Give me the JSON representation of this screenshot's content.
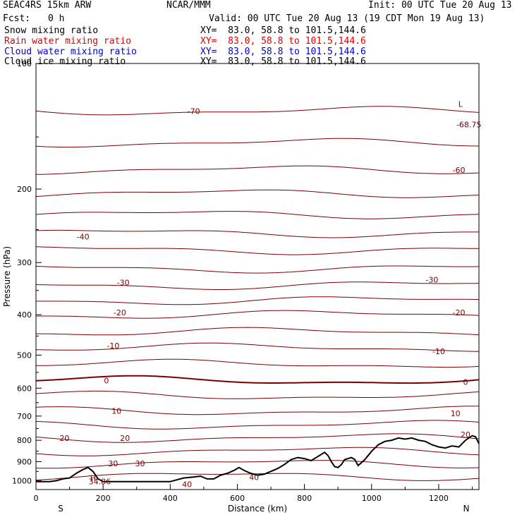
{
  "header": {
    "model": "SEAC4RS 15km ARW",
    "org": "NCAR/MMM",
    "init": "Init: 00 UTC Tue 20 Aug 13",
    "fcst_label": "Fcst:",
    "fcst_value": "0 h",
    "valid": "Valid: 00 UTC Tue 20 Aug 13 (19 CDT Mon 19 Aug 13)",
    "fields": [
      {
        "name": "Snow mixing ratio",
        "xy": "XY=  83.0, 58.8 to 101.5,144.6",
        "color": "#000000"
      },
      {
        "name": "Rain water mixing ratio",
        "xy": "XY=  83.0, 58.8 to 101.5,144.6",
        "color": "#e00000"
      },
      {
        "name": "Cloud water mixing ratio",
        "xy": "XY=  83.0, 58.8 to 101.5,144.6",
        "color": "#0000c8"
      },
      {
        "name": "Cloud ice mixing ratio",
        "xy": "XY=  83.0, 58.8 to 101.5,144.6",
        "color": "#000000"
      }
    ]
  },
  "chart_data": {
    "type": "line",
    "xlabel": "Distance (km)",
    "ylabel": "Pressure (hPa)",
    "xlim": [
      0,
      1320
    ],
    "ylim_hpa": [
      100,
      1050
    ],
    "y_scale": "log",
    "x_ticks": [
      0,
      200,
      400,
      600,
      800,
      1000,
      1200
    ],
    "x_tick_labels": [
      "0",
      "200",
      "400",
      "600",
      "800",
      "1000",
      "1200"
    ],
    "y_ticks": [
      100,
      200,
      300,
      400,
      500,
      600,
      700,
      800,
      900,
      1000
    ],
    "y_tick_labels": [
      "100",
      "200",
      "300",
      "400",
      "500",
      "600",
      "700",
      "800",
      "900",
      "1000"
    ],
    "end_labels": {
      "left": "S",
      "right": "N"
    },
    "contour_color": "#7a0000",
    "terrain_color": "#000000",
    "contour_interval": 5,
    "isotherm_pressures_hpa": [
      {
        "level": -70,
        "p": 130
      },
      {
        "level": -65,
        "p": 155
      },
      {
        "level": -60,
        "p": 180
      },
      {
        "level": -55,
        "p": 205
      },
      {
        "level": -50,
        "p": 230
      },
      {
        "level": -45,
        "p": 255
      },
      {
        "level": -40,
        "p": 280
      },
      {
        "level": -35,
        "p": 310
      },
      {
        "level": -30,
        "p": 340
      },
      {
        "level": -25,
        "p": 370
      },
      {
        "level": -20,
        "p": 400
      },
      {
        "level": -15,
        "p": 440
      },
      {
        "level": -10,
        "p": 480
      },
      {
        "level": -5,
        "p": 525
      },
      {
        "level": 0,
        "p": 575
      },
      {
        "level": 5,
        "p": 625
      },
      {
        "level": 10,
        "p": 680
      },
      {
        "level": 15,
        "p": 735
      },
      {
        "level": 20,
        "p": 790
      },
      {
        "level": 25,
        "p": 850
      },
      {
        "level": 30,
        "p": 910
      },
      {
        "level": 35,
        "p": 975
      }
    ],
    "labels": [
      {
        "text": "-70",
        "x": 470,
        "p": 130
      },
      {
        "text": "-68.75",
        "x": 1290,
        "p": 140
      },
      {
        "text": "L",
        "x": 1265,
        "p": 125
      },
      {
        "text": "-60",
        "x": 1260,
        "p": 180
      },
      {
        "text": "-40",
        "x": 140,
        "p": 260
      },
      {
        "text": "-30",
        "x": 260,
        "p": 335
      },
      {
        "text": "-30",
        "x": 1180,
        "p": 330
      },
      {
        "text": "-20",
        "x": 250,
        "p": 395
      },
      {
        "text": "-20",
        "x": 1260,
        "p": 395
      },
      {
        "text": "-10",
        "x": 230,
        "p": 475
      },
      {
        "text": "-10",
        "x": 1200,
        "p": 490
      },
      {
        "text": "0",
        "x": 210,
        "p": 575
      },
      {
        "text": "0",
        "x": 1280,
        "p": 580
      },
      {
        "text": "10",
        "x": 240,
        "p": 680
      },
      {
        "text": "10",
        "x": 1250,
        "p": 690
      },
      {
        "text": "20",
        "x": 85,
        "p": 790
      },
      {
        "text": "20",
        "x": 265,
        "p": 790
      },
      {
        "text": "20",
        "x": 1280,
        "p": 775
      },
      {
        "text": "30",
        "x": 230,
        "p": 910
      },
      {
        "text": "30",
        "x": 310,
        "p": 910
      },
      {
        "text": "40",
        "x": 650,
        "p": 980
      },
      {
        "text": "40",
        "x": 450,
        "p": 1020
      },
      {
        "text": "H",
        "x": 170,
        "p": 985
      },
      {
        "text": "34.86",
        "x": 190,
        "p": 1005
      }
    ],
    "terrain_km": [
      0,
      40,
      60,
      80,
      100,
      120,
      140,
      155,
      170,
      185,
      200,
      220,
      300,
      380,
      400,
      420,
      440,
      470,
      490,
      510,
      530,
      550,
      570,
      590,
      605,
      620,
      640,
      660,
      680,
      700,
      720,
      740,
      760,
      780,
      800,
      820,
      840,
      860,
      870,
      880,
      890,
      900,
      910,
      920,
      940,
      950,
      960,
      980,
      1000,
      1020,
      1040,
      1060,
      1080,
      1100,
      1120,
      1140,
      1160,
      1180,
      1200,
      1220,
      1240,
      1260,
      1280,
      1300,
      1310,
      1320
    ],
    "terrain_hpa": [
      1005,
      1005,
      1000,
      990,
      985,
      960,
      940,
      930,
      950,
      990,
      1005,
      1005,
      1005,
      1005,
      1005,
      995,
      985,
      980,
      975,
      990,
      990,
      970,
      960,
      945,
      930,
      945,
      960,
      970,
      965,
      950,
      935,
      915,
      890,
      880,
      885,
      895,
      875,
      855,
      870,
      900,
      925,
      930,
      915,
      890,
      880,
      890,
      920,
      890,
      850,
      820,
      805,
      800,
      790,
      795,
      790,
      800,
      805,
      820,
      830,
      835,
      825,
      830,
      800,
      780,
      785,
      815
    ]
  }
}
